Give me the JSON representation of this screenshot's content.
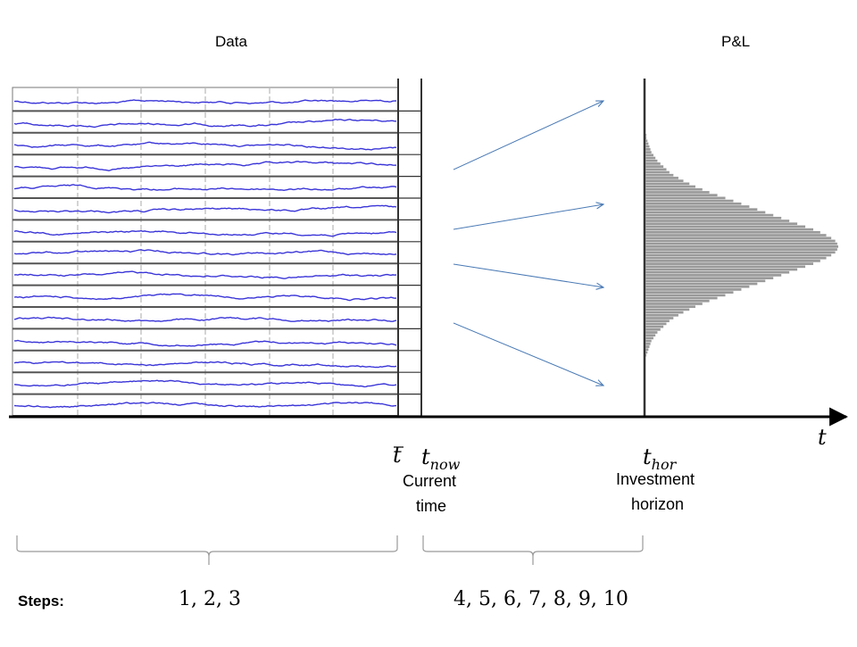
{
  "headers": {
    "data": "Data",
    "pnl": "P&L"
  },
  "axis": {
    "t": "t"
  },
  "time_marks": {
    "tbar": "t",
    "tnow_base": "t",
    "tnow_sub": "now",
    "thor_base": "t",
    "thor_sub": "hor"
  },
  "captions": {
    "current_1": "Current",
    "current_2": "time",
    "invest_1": "Investment",
    "invest_2": "horizon"
  },
  "steps": {
    "label": "Steps:",
    "group1": "1, 2, 3",
    "group2": "4, 5, 6, 7, 8, 9, 10"
  },
  "colors": {
    "series": "#3a35d8",
    "arrow": "#4a7ab5",
    "hist": "#9a9a9a",
    "axis": "#000000",
    "grid": "#555555"
  },
  "chart_data": {
    "type": "diagram",
    "series_count": 15,
    "histogram": {
      "type": "bar",
      "orientation": "horizontal",
      "values": [
        1,
        1,
        2,
        3,
        4,
        5,
        6,
        8,
        10,
        12,
        15,
        18,
        21,
        24,
        28,
        33,
        38,
        44,
        50,
        57,
        64,
        72,
        80,
        88,
        96,
        104,
        112,
        120,
        128,
        136,
        144,
        152,
        160,
        168,
        175,
        181,
        186,
        190,
        192,
        193,
        192,
        190,
        186,
        181,
        175,
        168,
        160,
        152,
        144,
        136,
        128,
        120,
        112,
        104,
        96,
        88,
        80,
        72,
        64,
        57,
        50,
        44,
        38,
        33,
        28,
        24,
        21,
        18,
        15,
        12,
        10,
        8,
        6,
        5,
        4,
        3,
        2,
        1
      ]
    }
  }
}
